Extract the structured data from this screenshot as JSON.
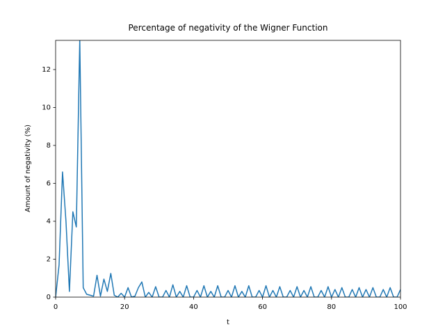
{
  "chart_data": {
    "type": "line",
    "title": "Percentage of negativity of the Wigner Function",
    "xlabel": "t",
    "ylabel": "Amount of negativity (%)",
    "color": "#1f77b4",
    "x": [
      0,
      1,
      2,
      3,
      4,
      5,
      6,
      7,
      8,
      9,
      10,
      11,
      12,
      13,
      14,
      15,
      16,
      17,
      18,
      19,
      20,
      21,
      22,
      23,
      24,
      25,
      26,
      27,
      28,
      29,
      30,
      31,
      32,
      33,
      34,
      35,
      36,
      37,
      38,
      39,
      40,
      41,
      42,
      43,
      44,
      45,
      46,
      47,
      48,
      49,
      50,
      51,
      52,
      53,
      54,
      55,
      56,
      57,
      58,
      59,
      60,
      61,
      62,
      63,
      64,
      65,
      66,
      67,
      68,
      69,
      70,
      71,
      72,
      73,
      74,
      75,
      76,
      77,
      78,
      79,
      80,
      81,
      82,
      83,
      84,
      85,
      86,
      87,
      88,
      89,
      90,
      91,
      92,
      93,
      94,
      95,
      96,
      97,
      98,
      99,
      100
    ],
    "values": [
      0,
      1.7,
      6.6,
      4.0,
      0.3,
      4.5,
      3.7,
      13.6,
      0.5,
      0.15,
      0.1,
      0.05,
      1.15,
      0.05,
      0.95,
      0.3,
      1.25,
      0.1,
      0,
      0.2,
      0,
      0.5,
      0,
      0.05,
      0.5,
      0.8,
      0,
      0.25,
      0,
      0.55,
      0,
      0,
      0.35,
      0,
      0.65,
      0,
      0.3,
      0,
      0.6,
      0,
      0,
      0.35,
      0,
      0.6,
      0,
      0.3,
      0,
      0.6,
      0,
      0,
      0.35,
      0,
      0.6,
      0,
      0.3,
      0,
      0.6,
      0,
      0,
      0.35,
      0,
      0.6,
      0,
      0.35,
      0,
      0.55,
      0,
      0,
      0.35,
      0,
      0.55,
      0,
      0.35,
      0,
      0.55,
      0,
      0,
      0.35,
      0,
      0.55,
      0,
      0.4,
      0,
      0.5,
      0,
      0,
      0.4,
      0,
      0.5,
      0,
      0.4,
      0,
      0.5,
      0,
      0,
      0.4,
      0,
      0.5,
      0,
      0,
      0.4
    ],
    "xlim": [
      0,
      100
    ],
    "ylim": [
      0,
      13.54
    ],
    "xticks": [
      0,
      20,
      40,
      60,
      80,
      100
    ],
    "yticks": [
      0,
      2,
      4,
      6,
      8,
      10,
      12
    ]
  }
}
